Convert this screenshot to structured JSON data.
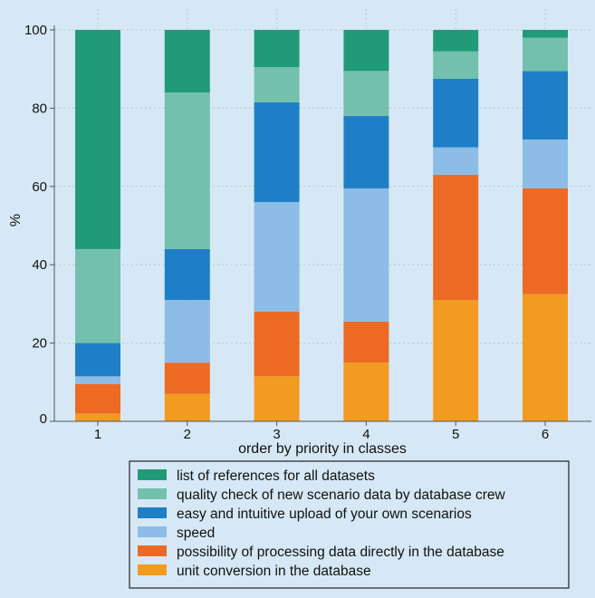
{
  "chart_data": {
    "type": "bar",
    "stacked": true,
    "categories": [
      "1",
      "2",
      "3",
      "4",
      "5",
      "6"
    ],
    "xlabel": "order by priority in classes",
    "ylabel": "%",
    "ylim": [
      0,
      100
    ],
    "yticks": [
      0,
      20,
      40,
      60,
      80,
      100
    ],
    "grid": true,
    "legend_position": "bottom",
    "series": [
      {
        "name": "unit conversion in the database",
        "color": "#f39a21",
        "values": [
          2,
          7,
          11.5,
          15,
          31,
          32.5
        ]
      },
      {
        "name": "possibility of processing data directly in the database",
        "color": "#ec6a24",
        "values": [
          7.5,
          8,
          16.5,
          10.5,
          32,
          27
        ]
      },
      {
        "name": "speed",
        "color": "#8dbce6",
        "values": [
          2,
          16,
          28,
          34,
          7,
          12.5
        ]
      },
      {
        "name": "easy and intuitive upload of your own scenarios",
        "color": "#1f7fc6",
        "values": [
          8.5,
          13,
          25.5,
          18.5,
          17.5,
          17.5
        ]
      },
      {
        "name": "quality check of new scenario data by database crew",
        "color": "#73c1ac",
        "values": [
          24,
          40,
          9,
          11.5,
          7,
          8.5
        ]
      },
      {
        "name": "list of references for all datasets",
        "color": "#219b77",
        "values": [
          56,
          16,
          9.5,
          10.5,
          5.5,
          2
        ]
      }
    ]
  }
}
